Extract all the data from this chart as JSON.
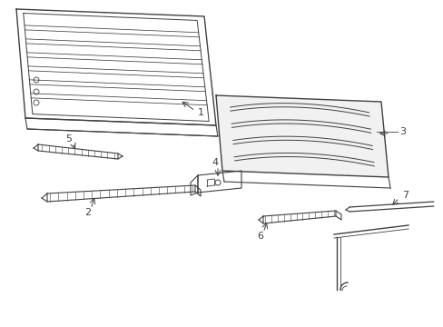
{
  "background_color": "#ffffff",
  "line_color": "#404040",
  "label_color": "#000000",
  "parts": {
    "part1_label": "1",
    "part2_label": "2",
    "part3_label": "3",
    "part4_label": "4",
    "part5_label": "5",
    "part6_label": "6",
    "part7_label": "7"
  },
  "figsize": [
    4.89,
    3.6
  ],
  "dpi": 100
}
